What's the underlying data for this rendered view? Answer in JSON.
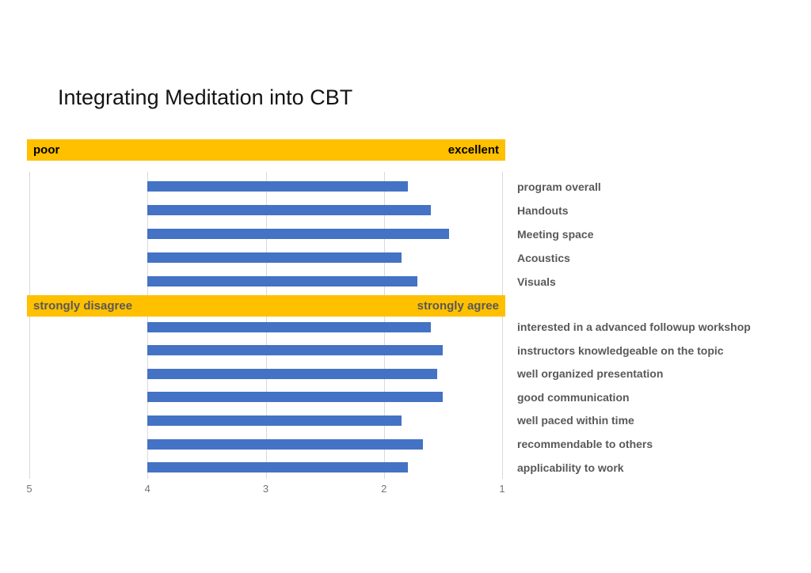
{
  "title": "Integrating Meditation into CBT",
  "colors": {
    "background": "#FFFFFF",
    "bar": "#4472C4",
    "banner_bg": "#FFC000",
    "banner1_text": "#000000",
    "banner2_text": "#595959",
    "gridline": "#D9D9D9",
    "category_label": "#595959",
    "axis_label": "#747474"
  },
  "chart_data": {
    "type": "bar",
    "orientation": "horizontal",
    "title": "Integrating Meditation into CBT",
    "xlabel": "",
    "ylabel": "",
    "x_axis": {
      "min": 1,
      "max": 5,
      "ticks": [
        5,
        4,
        3,
        2,
        1
      ],
      "reversed": true
    },
    "bars_baseline_value": 4,
    "grid": "vertical-only",
    "legend_position": "none",
    "groups": [
      {
        "scale_low": "poor",
        "scale_high": "excellent",
        "categories": [
          "program overall",
          "Handouts",
          "Meeting space",
          "Acoustics",
          "Visuals"
        ],
        "values": [
          1.8,
          1.6,
          1.45,
          1.85,
          1.72
        ]
      },
      {
        "scale_low": "strongly disagree",
        "scale_high": "strongly agree",
        "categories": [
          "interested in a advanced followup workshop",
          "instructors knowledgeable on the topic",
          "well organized presentation",
          "good communication",
          "well paced within time",
          "recommendable to others",
          "applicability to work"
        ],
        "values": [
          1.6,
          1.5,
          1.55,
          1.5,
          1.85,
          1.67,
          1.8
        ]
      }
    ]
  }
}
